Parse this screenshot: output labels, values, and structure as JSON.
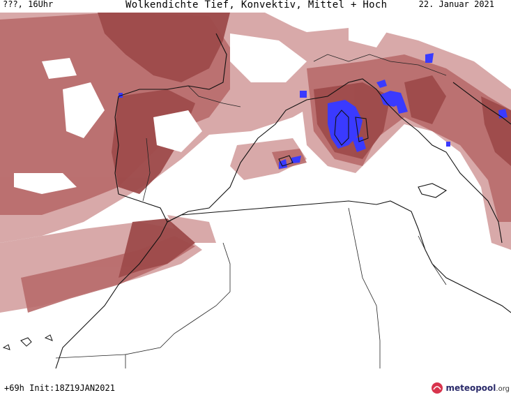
{
  "header": {
    "valid_label": "???, 16Uhr",
    "title": "Wolkendichte  Tief, Konvektiv, Mittel + Hoch",
    "date": "22. Januar 2021"
  },
  "footer": {
    "run_info": "+69h  Init:18Z19JAN2021"
  },
  "logo": {
    "name_main": "meteopool",
    "name_suffix": ".org"
  },
  "colors": {
    "cloud_dark": "#9e4b4b",
    "cloud_mid": "#b86a6a",
    "cloud_light": "#d4a0a0",
    "convective": "#3a3aff",
    "coast": "#111111",
    "border": "#222222",
    "background": "#ffffff"
  }
}
